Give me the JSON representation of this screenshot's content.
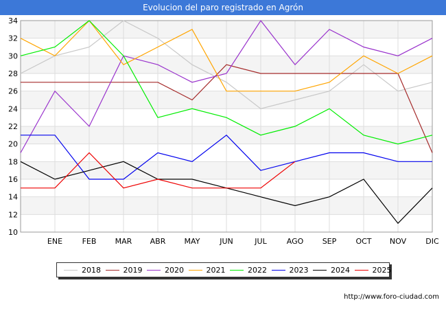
{
  "page": {
    "title": "Evolucion del paro registrado en Agrón",
    "credit": "http://www.foro-ciudad.com",
    "title_bg": "#3c78d8"
  },
  "chart_data": {
    "type": "line",
    "title": "Evolucion del paro registrado en Agrón",
    "xlabel": "",
    "ylabel": "",
    "categories": [
      "",
      "ENE",
      "FEB",
      "MAR",
      "ABR",
      "MAY",
      "JUN",
      "JUL",
      "AGO",
      "SEP",
      "OCT",
      "NOV",
      "DIC"
    ],
    "ylim": [
      10,
      34
    ],
    "yticks": [
      10,
      12,
      14,
      16,
      18,
      20,
      22,
      24,
      26,
      28,
      30,
      32,
      34
    ],
    "grid": true,
    "legend_position": "bottom",
    "series": [
      {
        "name": "2018",
        "color": "#c8c8c8",
        "values": [
          28,
          30,
          31,
          34,
          32,
          29,
          27,
          24,
          25,
          26,
          29,
          26,
          27
        ]
      },
      {
        "name": "2019",
        "color": "#a52a2a",
        "values": [
          27,
          27,
          27,
          27,
          27,
          25,
          29,
          28,
          28,
          28,
          28,
          28,
          19
        ]
      },
      {
        "name": "2020",
        "color": "#9932cc",
        "values": [
          19,
          26,
          22,
          30,
          29,
          27,
          28,
          34,
          29,
          33,
          31,
          30,
          32
        ]
      },
      {
        "name": "2021",
        "color": "#ffa500",
        "values": [
          32,
          30,
          34,
          29,
          31,
          33,
          26,
          26,
          26,
          27,
          30,
          28,
          30
        ]
      },
      {
        "name": "2022",
        "color": "#00ee00",
        "values": [
          30,
          31,
          34,
          30,
          23,
          24,
          23,
          21,
          22,
          24,
          21,
          20,
          21
        ]
      },
      {
        "name": "2023",
        "color": "#0000ee",
        "values": [
          21,
          21,
          16,
          16,
          19,
          18,
          21,
          17,
          18,
          19,
          19,
          18,
          18
        ]
      },
      {
        "name": "2024",
        "color": "#000000",
        "values": [
          18,
          16,
          17,
          18,
          16,
          16,
          15,
          14,
          13,
          14,
          16,
          11,
          15
        ]
      },
      {
        "name": "2025",
        "color": "#ee0000",
        "values": [
          15,
          15,
          19,
          15,
          16,
          15,
          15,
          15,
          18,
          null,
          null,
          null,
          null
        ]
      }
    ]
  }
}
